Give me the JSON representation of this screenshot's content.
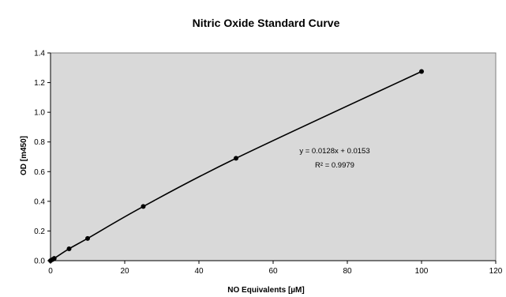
{
  "chart_data": {
    "type": "scatter",
    "title": "Nitric Oxide Standard Curve",
    "xlabel": "NO Equivalents [µM]",
    "ylabel": "OD [m450]",
    "xlim": [
      0,
      120
    ],
    "ylim": [
      0,
      1.4
    ],
    "xticks": [
      0,
      20,
      40,
      60,
      80,
      100,
      120
    ],
    "yticks": [
      0.0,
      0.2,
      0.4,
      0.6,
      0.8,
      1.0,
      1.2,
      1.4
    ],
    "x_tick_labels": [
      "0",
      "20",
      "40",
      "60",
      "80",
      "100",
      "120"
    ],
    "y_tick_labels": [
      "0.0",
      "0.2",
      "0.4",
      "0.6",
      "0.8",
      "1.0",
      "1.2",
      "1.4"
    ],
    "grid": false,
    "plot_background": "#d9d9d9",
    "line_color": "#000000",
    "point_color": "#000000",
    "series": [
      {
        "x": [
          0,
          0.5,
          1,
          5,
          10,
          25,
          50,
          100
        ],
        "y": [
          0.0,
          0.007,
          0.015,
          0.08,
          0.15,
          0.365,
          0.69,
          1.275
        ]
      }
    ],
    "annotations": {
      "equation": "y = 0.0128x + 0.0153",
      "r_squared": "R² = 0.9979"
    }
  }
}
